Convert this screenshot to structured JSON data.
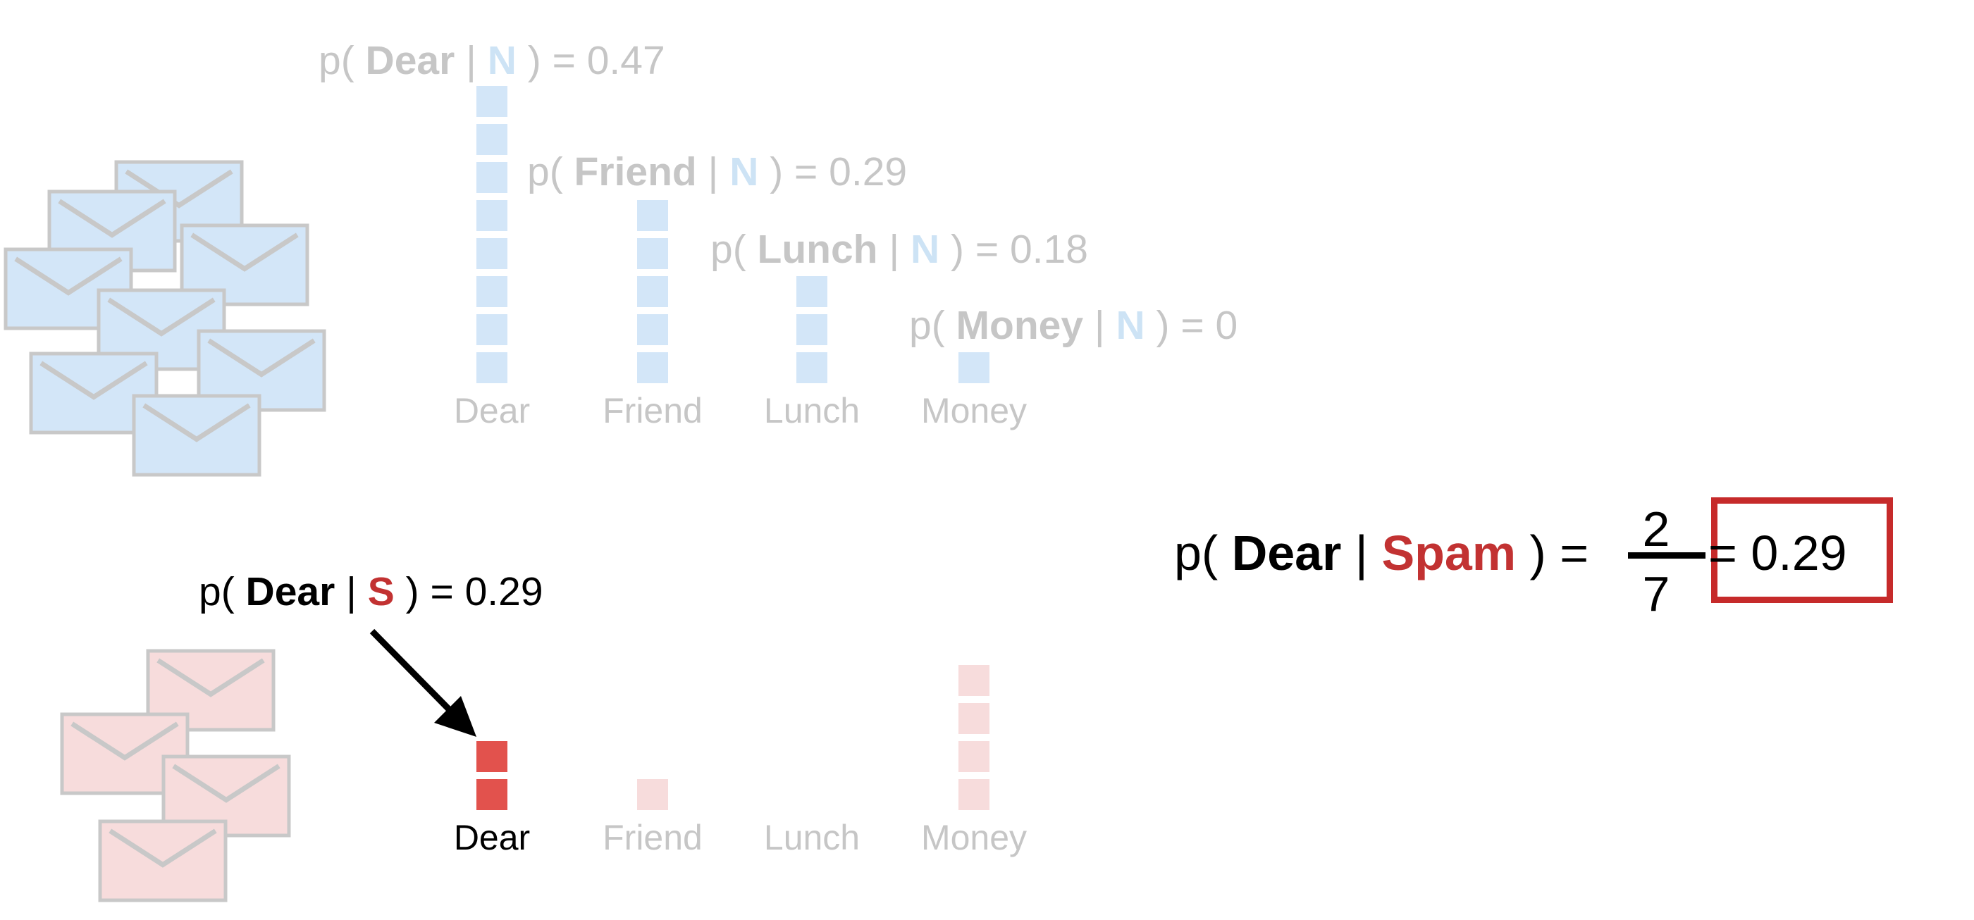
{
  "colors": {
    "normal_fill": "#d3e6f8",
    "normal_stroke": "#c8c8c8",
    "spam_fill": "#f7dcdc",
    "spam_highlight": "#e2524d",
    "spam_text": "#c23232",
    "box_border": "#c62a2a"
  },
  "normal": {
    "annotations": [
      {
        "prefix": "p( ",
        "word": "Dear",
        "sep": " | ",
        "cls": "N",
        "suffix": " ) = 0.47"
      },
      {
        "prefix": "p( ",
        "word": "Friend",
        "sep": " | ",
        "cls": "N",
        "suffix": " ) = 0.29"
      },
      {
        "prefix": "p( ",
        "word": "Lunch",
        "sep": " | ",
        "cls": "N",
        "suffix": " ) = 0.18"
      },
      {
        "prefix": "p( ",
        "word": "Money",
        "sep": " | ",
        "cls": "N",
        "suffix": " ) = 0."
      }
    ],
    "words": [
      "Dear",
      "Friend",
      "Lunch",
      "Money"
    ],
    "counts": [
      8,
      5,
      3,
      1
    ]
  },
  "spam": {
    "annotation": {
      "prefix": "p( ",
      "word": "Dear",
      "sep": " | ",
      "cls": "S",
      "suffix": " ) = 0.29"
    },
    "words": [
      "Dear",
      "Friend",
      "Lunch",
      "Money"
    ],
    "counts": [
      2,
      1,
      0,
      4
    ]
  },
  "formula": {
    "prefix": "p( ",
    "word": "Dear",
    "sep": " | ",
    "cls": "Spam",
    "suffix": " ) =",
    "numerator": "2",
    "denominator": "7",
    "result": "= 0.29"
  }
}
